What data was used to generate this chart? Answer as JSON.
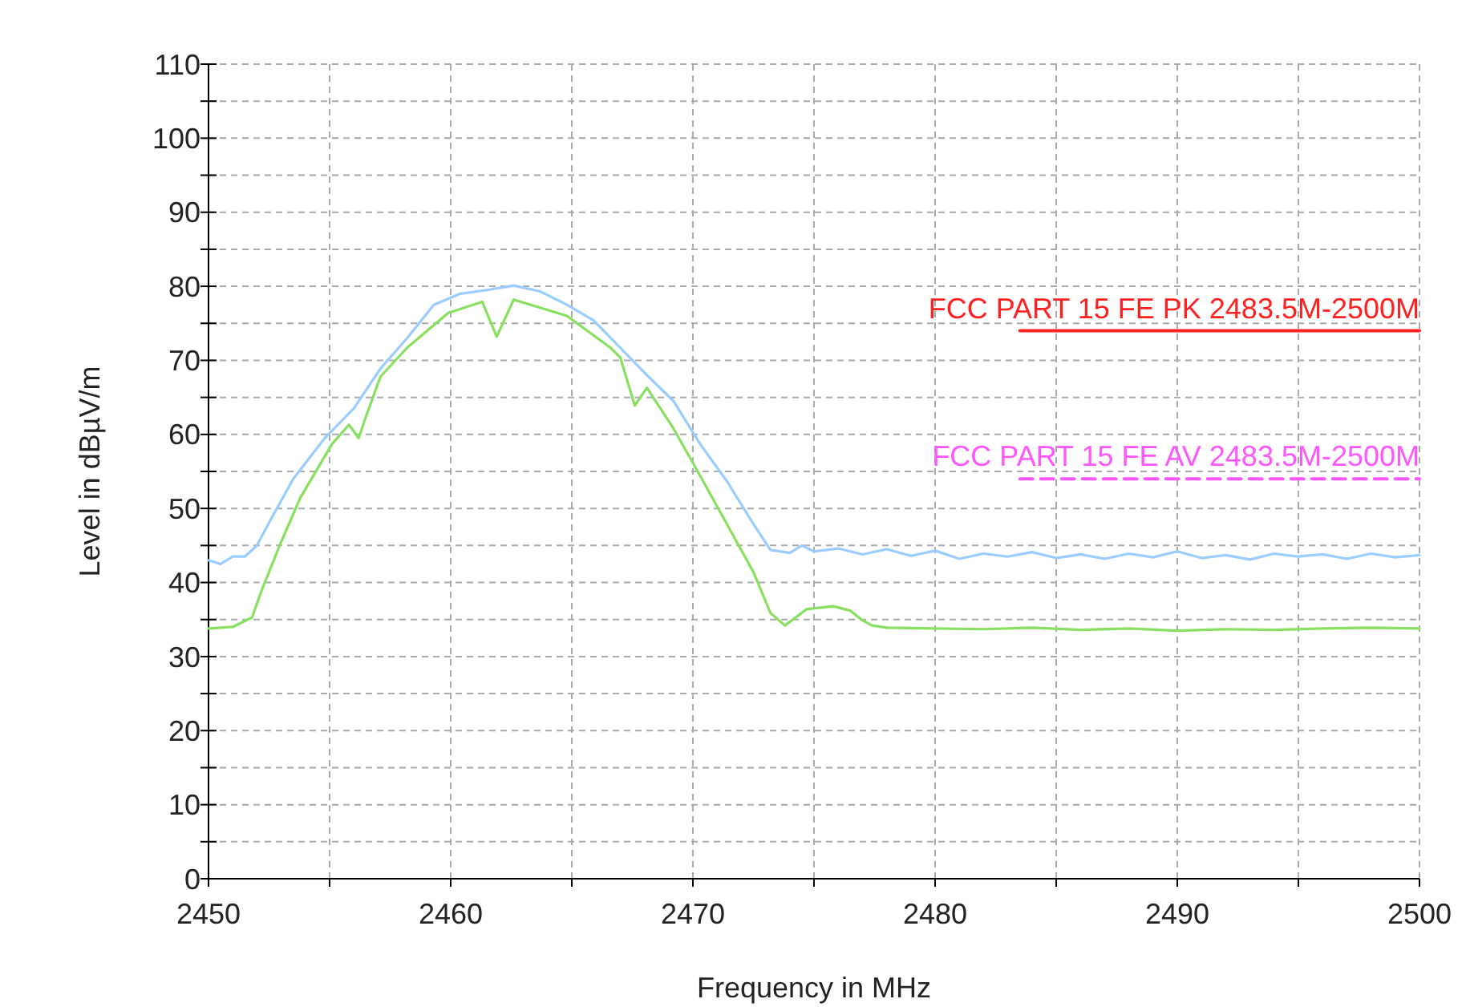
{
  "chart_data": {
    "type": "line",
    "xlabel": "Frequency in MHz",
    "ylabel": "Level in dBµV/m",
    "xlim": [
      2450,
      2500
    ],
    "ylim": [
      0,
      110
    ],
    "xticks": [
      2450,
      {
        "value": 2455,
        "label": null
      },
      2460,
      {
        "value": 2465,
        "label": null
      },
      2470,
      {
        "value": 2475,
        "label": null
      },
      2480,
      {
        "value": 2485,
        "label": null
      },
      2490,
      {
        "value": 2495,
        "label": null
      },
      2500
    ],
    "yticks": [
      0,
      {
        "value": 5,
        "label": null
      },
      10,
      {
        "value": 15,
        "label": null
      },
      20,
      {
        "value": 25,
        "label": null
      },
      30,
      {
        "value": 35,
        "label": null
      },
      40,
      {
        "value": 45,
        "label": null
      },
      50,
      {
        "value": 55,
        "label": null
      },
      60,
      {
        "value": 65,
        "label": null
      },
      70,
      {
        "value": 75,
        "label": null
      },
      80,
      {
        "value": 85,
        "label": null
      },
      90,
      {
        "value": 95,
        "label": null
      },
      100,
      {
        "value": 105,
        "label": null
      },
      110
    ],
    "grid": true,
    "marker": "none",
    "series": [
      {
        "color": "#99ccff",
        "x": [
          2450,
          2450.5,
          2451,
          2451.5,
          2452,
          2452.6,
          2453.5,
          2454.8,
          2456,
          2457.1,
          2458.2,
          2459.3,
          2460.4,
          2461.5,
          2462.6,
          2463.7,
          2464.8,
          2465.9,
          2467,
          2468.1,
          2469.2,
          2470.3,
          2471.4,
          2472.5,
          2473.2,
          2474,
          2474.5,
          2475,
          2476,
          2477,
          2478,
          2479,
          2480,
          2481,
          2482,
          2483,
          2484,
          2485,
          2486,
          2487,
          2488,
          2489,
          2490,
          2491,
          2492,
          2493,
          2494,
          2495,
          2496,
          2497,
          2498,
          2499,
          2500
        ],
        "values": [
          43,
          42.5,
          43.5,
          43.5,
          45,
          48.7,
          54,
          59.5,
          63.5,
          68.9,
          73,
          77.5,
          79,
          79.5,
          80.1,
          79.3,
          77.5,
          75.4,
          71.7,
          68,
          64.5,
          58.7,
          53.7,
          47.9,
          44.4,
          44,
          45,
          44.2,
          44.6,
          43.8,
          44.5,
          43.6,
          44.3,
          43.2,
          43.9,
          43.5,
          44.1,
          43.3,
          43.8,
          43.2,
          43.9,
          43.4,
          44.2,
          43.3,
          43.7,
          43.1,
          43.9,
          43.5,
          43.8,
          43.2,
          43.9,
          43.4,
          43.7
        ]
      },
      {
        "color": "#88e060",
        "x": [
          2450,
          2451,
          2451.8,
          2452.2,
          2453,
          2453.8,
          2455.1,
          2455.8,
          2456.2,
          2456.5,
          2457.1,
          2458.2,
          2459.9,
          2461.3,
          2461.9,
          2462.6,
          2463.5,
          2464.8,
          2466.6,
          2467,
          2467.6,
          2468.1,
          2469.2,
          2470.3,
          2471.4,
          2472.5,
          2473.2,
          2473.8,
          2474.7,
          2475.8,
          2476.5,
          2477,
          2477.4,
          2478,
          2480,
          2482,
          2484,
          2486,
          2488,
          2490,
          2492,
          2494,
          2496,
          2498,
          2500
        ],
        "values": [
          33.8,
          34,
          35.3,
          39,
          45.5,
          51.5,
          58.7,
          61.3,
          59.5,
          62.4,
          67.8,
          71.7,
          76.4,
          77.9,
          73.2,
          78.2,
          77.3,
          76,
          71.7,
          70.4,
          63.9,
          66.3,
          60.8,
          54.4,
          47.9,
          41.4,
          35.9,
          34.2,
          36.4,
          36.8,
          36.2,
          34.9,
          34.2,
          33.9,
          33.8,
          33.7,
          33.9,
          33.6,
          33.8,
          33.5,
          33.7,
          33.6,
          33.8,
          33.9,
          33.8
        ]
      },
      {
        "name": "FCC PART 15 FE PK 2483.5M-2500M",
        "color": "#ff2020",
        "line_style": "solid",
        "x": [
          2483.5,
          2500
        ],
        "values": [
          74,
          74
        ]
      },
      {
        "name": "FCC PART 15 FE AV 2483.5M-2500M",
        "color": "#ff55ff",
        "line_style": "dashed",
        "x": [
          2483.5,
          2500
        ],
        "values": [
          54,
          54
        ]
      }
    ]
  }
}
